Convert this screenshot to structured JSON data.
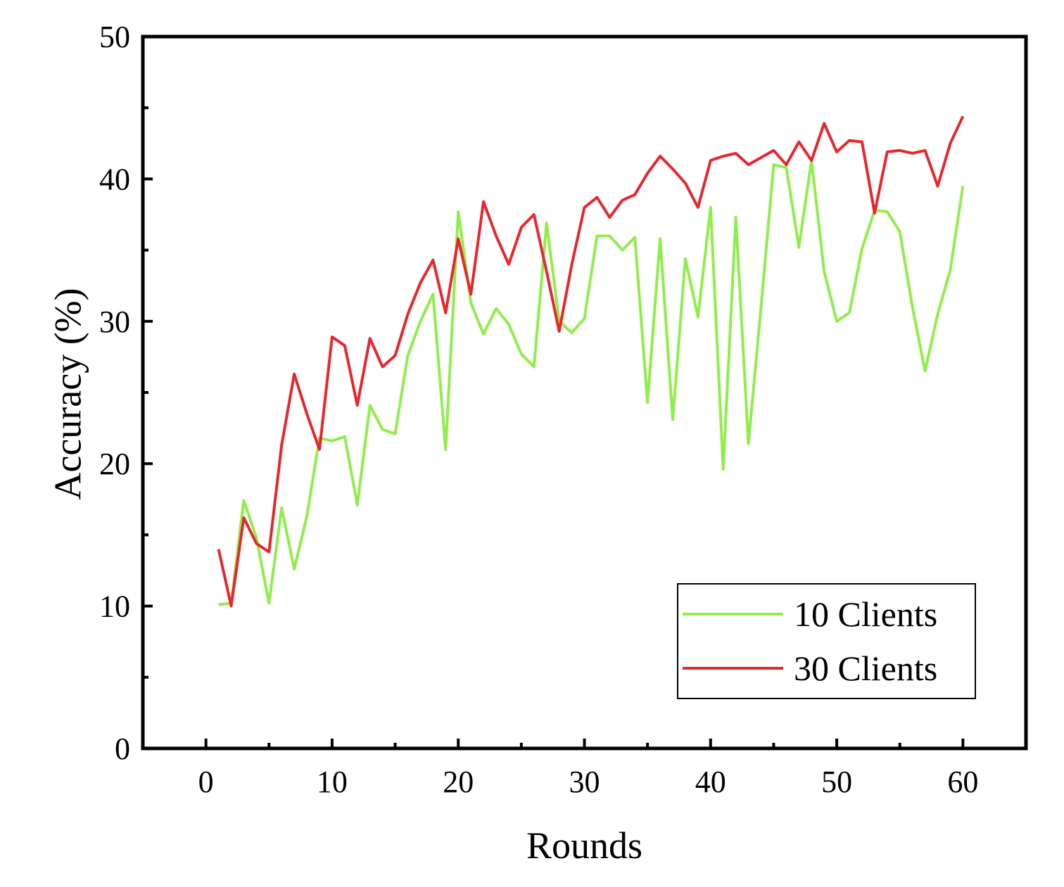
{
  "chart_data": {
    "type": "line",
    "title": "",
    "xlabel": "Rounds",
    "ylabel": "Accuracy (%)",
    "xlim": [
      -5,
      65
    ],
    "ylim": [
      0,
      50
    ],
    "x_ticks": [
      0,
      10,
      20,
      30,
      40,
      50,
      60
    ],
    "y_ticks": [
      0,
      10,
      20,
      30,
      40,
      50
    ],
    "x_minor_ticks": [
      5,
      15,
      25,
      35,
      45,
      55
    ],
    "y_minor_ticks": [
      5,
      15,
      25,
      35,
      45
    ],
    "grid": false,
    "legend_position": "bottom-right",
    "x": [
      1,
      2,
      3,
      4,
      5,
      6,
      7,
      8,
      9,
      10,
      11,
      12,
      13,
      14,
      15,
      16,
      17,
      18,
      19,
      20,
      21,
      22,
      23,
      24,
      25,
      26,
      27,
      28,
      29,
      30,
      31,
      32,
      33,
      34,
      35,
      36,
      37,
      38,
      39,
      40,
      41,
      42,
      43,
      44,
      45,
      46,
      47,
      48,
      49,
      50,
      51,
      52,
      53,
      54,
      55,
      56,
      57,
      58,
      59,
      60
    ],
    "series": [
      {
        "name": "10 Clients",
        "color": "#90EE4A",
        "values": [
          10.1,
          10.2,
          17.4,
          14.8,
          10.2,
          16.9,
          12.6,
          16.3,
          21.8,
          21.6,
          21.9,
          17.1,
          24.1,
          22.4,
          22.1,
          27.6,
          30.0,
          31.9,
          21.0,
          37.7,
          31.3,
          29.1,
          30.9,
          29.8,
          27.7,
          26.8,
          36.9,
          30.0,
          29.2,
          30.2,
          36.0,
          36.0,
          35.0,
          35.9,
          24.3,
          35.8,
          23.1,
          34.4,
          30.3,
          38.0,
          19.6,
          37.3,
          21.4,
          31.0,
          41.0,
          40.8,
          35.2,
          41.3,
          33.5,
          30.0,
          30.6,
          35.1,
          37.8,
          37.7,
          36.3,
          31.0,
          26.5,
          30.5,
          33.6,
          39.5
        ]
      },
      {
        "name": "30 Clients",
        "color": "#E8262C",
        "values": [
          14.0,
          10.0,
          16.2,
          14.4,
          13.8,
          21.3,
          26.3,
          23.5,
          21.0,
          28.9,
          28.3,
          24.1,
          28.8,
          26.8,
          27.6,
          30.5,
          32.7,
          34.3,
          30.6,
          35.8,
          31.9,
          38.4,
          36.0,
          34.0,
          36.6,
          37.5,
          33.5,
          29.3,
          34.0,
          38.0,
          38.7,
          37.3,
          38.5,
          38.9,
          40.4,
          41.6,
          40.7,
          39.7,
          38.0,
          41.3,
          41.6,
          41.8,
          41.0,
          41.5,
          42.0,
          41.0,
          42.6,
          41.3,
          43.9,
          41.9,
          42.7,
          42.6,
          37.6,
          41.9,
          42.0,
          41.8,
          42.0,
          39.5,
          42.5,
          44.4
        ]
      }
    ]
  }
}
